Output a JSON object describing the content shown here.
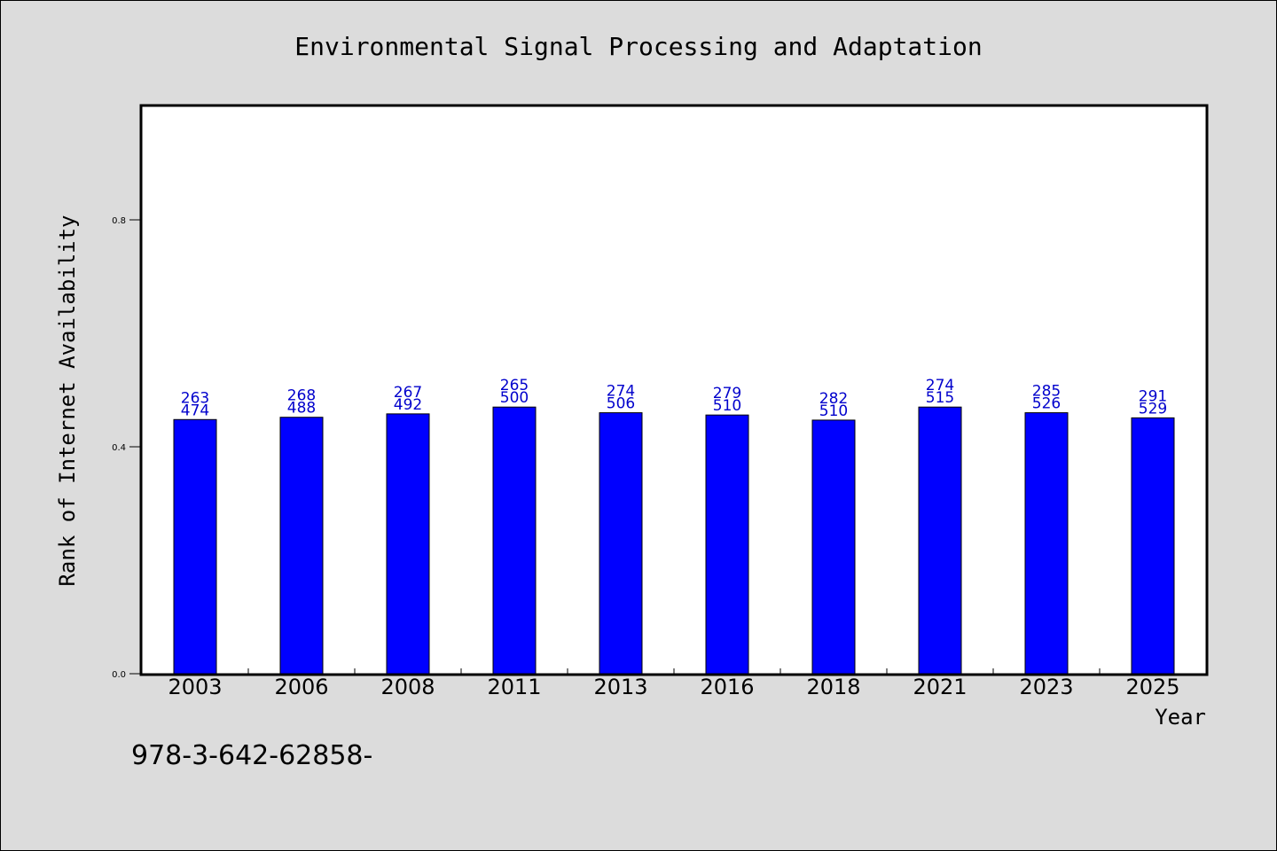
{
  "chart_data": {
    "type": "bar",
    "title": "Environmental Signal Processing and Adaptation",
    "xlabel": "Year",
    "ylabel": "Rank of Internet Availability",
    "categories": [
      "2003",
      "2006",
      "2008",
      "2011",
      "2013",
      "2016",
      "2018",
      "2021",
      "2023",
      "2025"
    ],
    "values": [
      0.448,
      0.452,
      0.458,
      0.47,
      0.46,
      0.456,
      0.447,
      0.47,
      0.46,
      0.451
    ],
    "value_labels_top": [
      "263",
      "268",
      "267",
      "265",
      "274",
      "279",
      "282",
      "274",
      "285",
      "291"
    ],
    "value_labels_bottom": [
      "474",
      "488",
      "492",
      "500",
      "506",
      "510",
      "510",
      "515",
      "526",
      "529"
    ],
    "yticks": [
      "0.0",
      "0.4",
      "0.8"
    ],
    "ytick_values": [
      0.0,
      0.4,
      0.8
    ],
    "ylim": [
      0.0,
      1.0
    ],
    "grid": false,
    "colors": {
      "bar": "#0000ff",
      "label": "#0000cc",
      "background": "#dcdcdc",
      "plot_background": "#ffffff"
    }
  },
  "footer_text": "978-3-642-62858-"
}
